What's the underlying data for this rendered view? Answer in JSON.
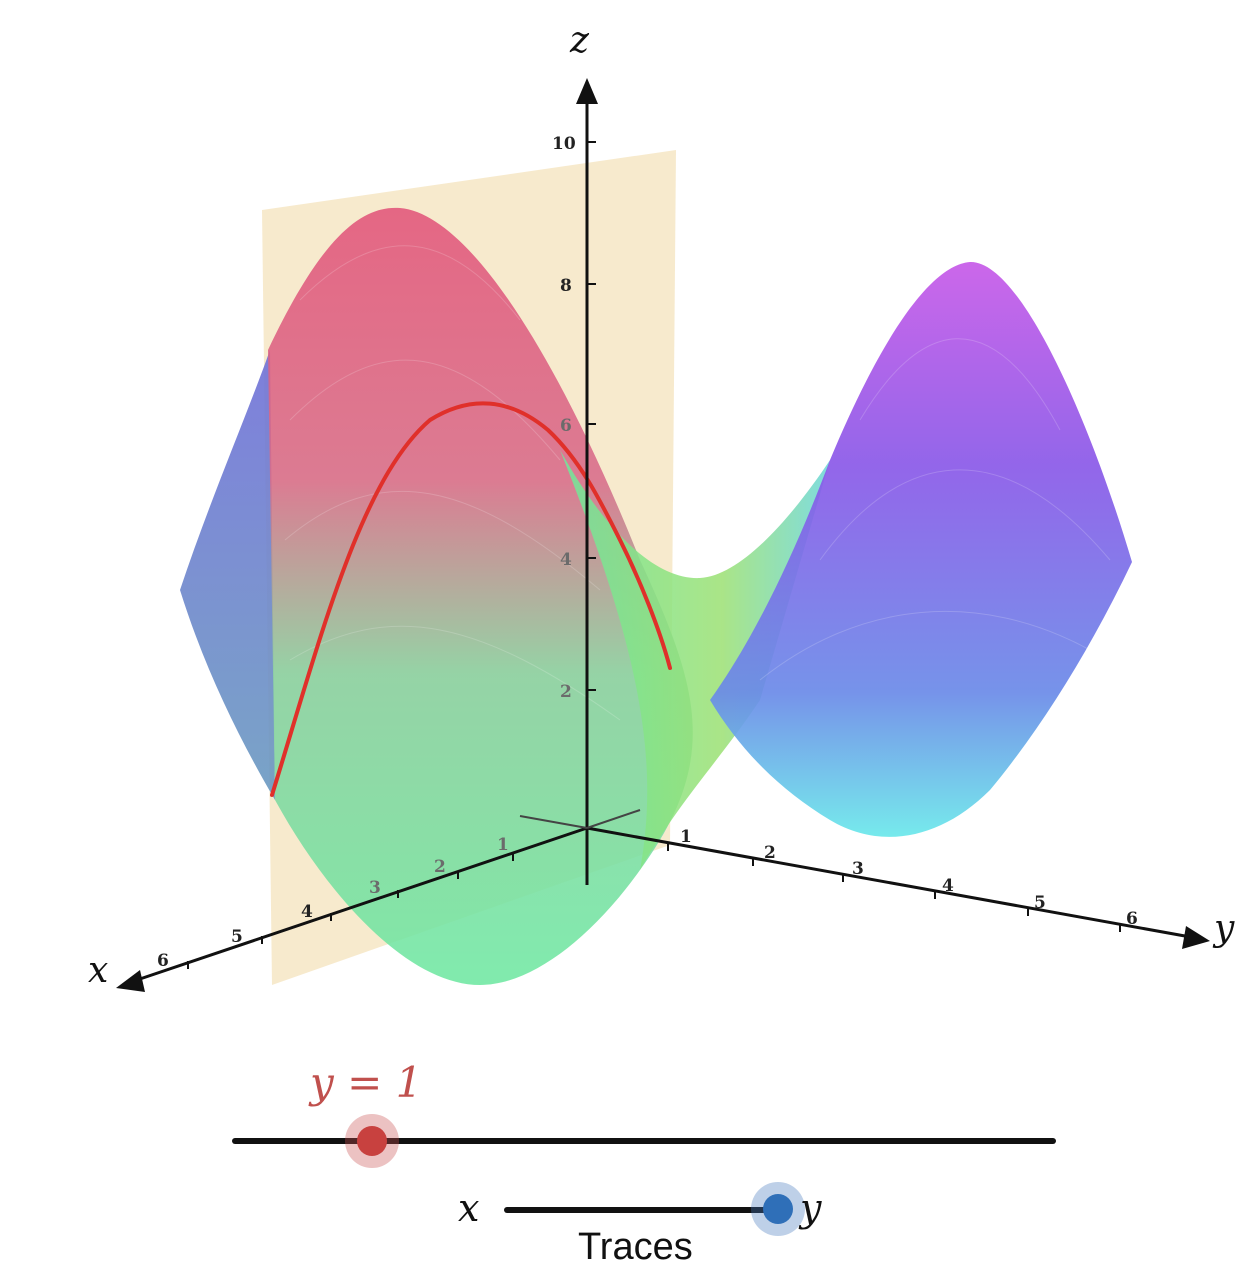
{
  "axes": {
    "x_label": "x",
    "y_label": "y",
    "z_label": "z",
    "x_ticks": [
      "1",
      "2",
      "3",
      "4",
      "5",
      "6"
    ],
    "y_ticks": [
      "1",
      "2",
      "3",
      "4",
      "5",
      "6"
    ],
    "z_ticks": [
      "2",
      "4",
      "6",
      "8",
      "10"
    ]
  },
  "colors": {
    "plane": "#f6e6c4",
    "trace_curve": "#e0302a",
    "surface_red": "#e45a6e",
    "surface_green": "#7ee89a",
    "surface_purple": "#8a5ae8",
    "surface_cyan": "#6ae6ea",
    "slider_knob_red": "#c8413f",
    "slider_knob_blue": "#2f6fb8"
  },
  "y_slider": {
    "label": "y = 1",
    "value": 1
  },
  "traces_toggle": {
    "left_label": "x",
    "right_label": "y",
    "caption": "Traces",
    "selected": "y"
  }
}
